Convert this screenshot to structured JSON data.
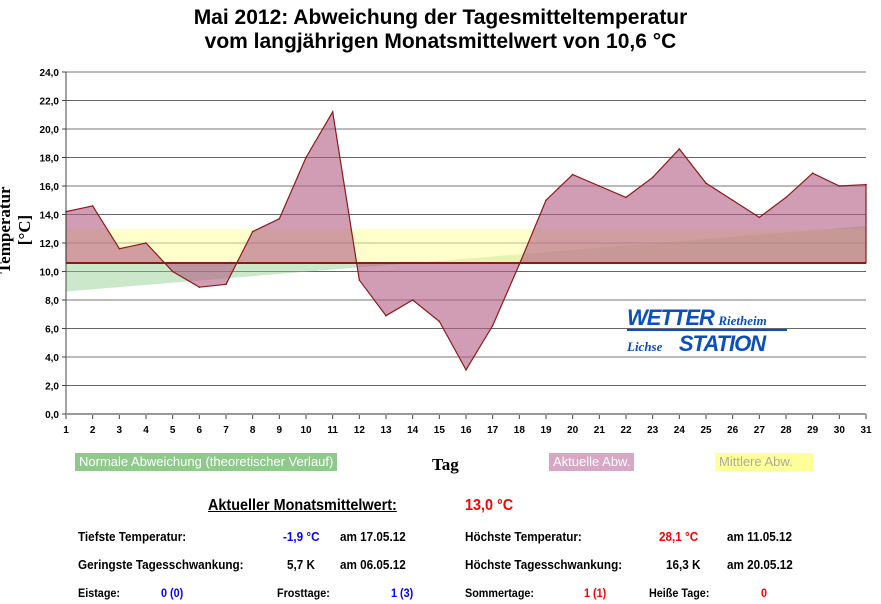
{
  "chart_data": {
    "type": "area",
    "title": [
      "Mai 2012: Abweichung der Tagesmitteltemperatur",
      "vom langjährigen Monatsmittelwert von 10,6 °C"
    ],
    "xlabel": "Tag",
    "ylabel": "Temperatur [°C]",
    "ylim": [
      0,
      24
    ],
    "yticks": [
      "0,0",
      "2,0",
      "4,0",
      "6,0",
      "8,0",
      "10,0",
      "12,0",
      "14,0",
      "16,0",
      "18,0",
      "20,0",
      "22,0",
      "24,0"
    ],
    "x": [
      1,
      2,
      3,
      4,
      5,
      6,
      7,
      8,
      9,
      10,
      11,
      12,
      13,
      14,
      15,
      16,
      17,
      18,
      19,
      20,
      21,
      22,
      23,
      24,
      25,
      26,
      27,
      28,
      29,
      30,
      31
    ],
    "baseline": 10.6,
    "series": [
      {
        "name": "Aktuelle Abw.",
        "color": "#b05c84",
        "values": [
          14.2,
          14.6,
          11.6,
          12.0,
          10.0,
          8.9,
          9.1,
          12.8,
          13.7,
          18.0,
          21.2,
          9.4,
          6.9,
          8.0,
          6.5,
          3.1,
          6.2,
          10.5,
          15.0,
          16.8,
          16.0,
          15.2,
          16.6,
          18.6,
          16.2,
          15.0,
          13.8,
          15.2,
          16.9,
          16.0,
          16.1
        ]
      },
      {
        "name": "Normale Abweichung (theoretischer Verlauf)",
        "color": "#8fcb8a",
        "start": 8.6,
        "end": 13.2
      },
      {
        "name": "Mittlere Abw.",
        "color": "#ffff99",
        "value": 13.0
      }
    ],
    "grid": true
  },
  "logo": {
    "top": "WETTER",
    "top_right": "Rietheim",
    "bottom_left": "Lichse",
    "bottom": "STATION"
  },
  "stats": {
    "mean_label": "Aktueller Monatsmittelwert:",
    "mean_value": "13,0 °C",
    "min_label": "Tiefste Temperatur:",
    "min_value": "-1,9 °C",
    "min_date": "am 17.05.12",
    "max_label": "Höchste Temperatur:",
    "max_value": "28,1 °C",
    "max_date": "am 11.05.12",
    "minrange_label": "Geringste Tagesschwankung:",
    "minrange_value": "5,7 K",
    "minrange_date": "am 06.05.12",
    "maxrange_label": "Höchste Tagesschwankung:",
    "maxrange_value": "16,3 K",
    "maxrange_date": "am 20.05.12",
    "ice_label": "Eistage:",
    "ice_value": "0 (0)",
    "frost_label": "Frosttage:",
    "frost_value": "1 (3)",
    "summer_label": "Sommertage:",
    "summer_value": "1 (1)",
    "hot_label": "Heiße Tage:",
    "hot_value": "0"
  }
}
